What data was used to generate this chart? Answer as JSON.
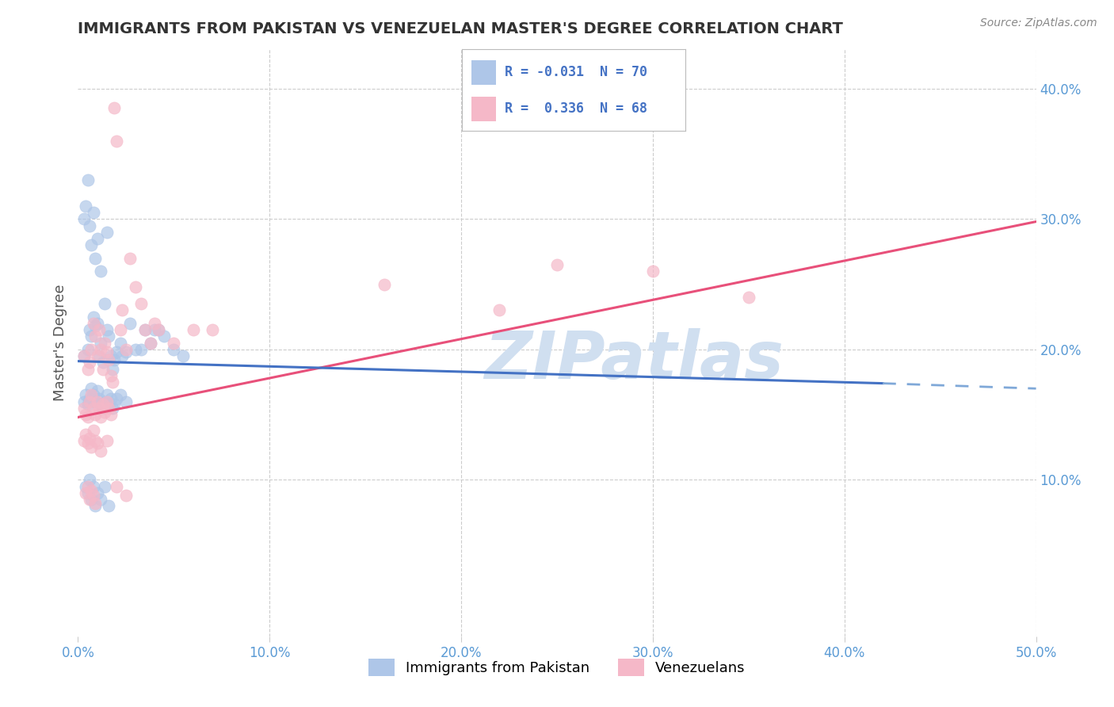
{
  "title": "IMMIGRANTS FROM PAKISTAN VS VENEZUELAN MASTER'S DEGREE CORRELATION CHART",
  "source_text": "Source: ZipAtlas.com",
  "ylabel": "Master's Degree",
  "xlim": [
    0.0,
    0.5
  ],
  "ylim": [
    -0.02,
    0.43
  ],
  "xticks": [
    0.0,
    0.1,
    0.2,
    0.3,
    0.4,
    0.5
  ],
  "xtick_labels": [
    "0.0%",
    "10.0%",
    "20.0%",
    "30.0%",
    "40.0%",
    "50.0%"
  ],
  "yticks": [
    0.1,
    0.2,
    0.3,
    0.4
  ],
  "ytick_labels": [
    "10.0%",
    "20.0%",
    "30.0%",
    "40.0%"
  ],
  "R_pakistan": -0.031,
  "N_pakistan": 70,
  "R_venezuela": 0.336,
  "N_venezuela": 68,
  "pakistan_color": "#aec6e8",
  "venezuela_color": "#f5b8c8",
  "pakistan_line_solid_color": "#4472c4",
  "pakistan_line_dash_color": "#7fa8d8",
  "venezuela_line_color": "#e8507a",
  "trend_pak_x0": 0.0,
  "trend_pak_y0": 0.191,
  "trend_pak_x1": 0.42,
  "trend_pak_y1": 0.174,
  "trend_pak_dash_x0": 0.42,
  "trend_pak_dash_y0": 0.174,
  "trend_pak_dash_x1": 0.5,
  "trend_pak_dash_y1": 0.17,
  "trend_ven_x0": 0.0,
  "trend_ven_y0": 0.148,
  "trend_ven_x1": 0.5,
  "trend_ven_y1": 0.298,
  "watermark": "ZIPatlas",
  "watermark_color": "#d0dff0",
  "background_color": "#ffffff",
  "grid_color": "#cccccc",
  "title_color": "#333333",
  "tick_label_color": "#5b9bd5",
  "ylabel_color": "#555555",
  "pakistan_scatter_x": [
    0.003,
    0.005,
    0.006,
    0.007,
    0.008,
    0.009,
    0.01,
    0.011,
    0.012,
    0.013,
    0.014,
    0.015,
    0.016,
    0.017,
    0.018,
    0.019,
    0.02,
    0.022,
    0.023,
    0.025,
    0.027,
    0.03,
    0.033,
    0.035,
    0.038,
    0.04,
    0.042,
    0.045,
    0.05,
    0.055,
    0.003,
    0.004,
    0.005,
    0.006,
    0.007,
    0.008,
    0.009,
    0.01,
    0.011,
    0.012,
    0.013,
    0.014,
    0.015,
    0.016,
    0.017,
    0.018,
    0.019,
    0.02,
    0.022,
    0.025,
    0.003,
    0.004,
    0.005,
    0.006,
    0.007,
    0.008,
    0.009,
    0.01,
    0.012,
    0.015,
    0.004,
    0.005,
    0.006,
    0.007,
    0.008,
    0.009,
    0.01,
    0.012,
    0.014,
    0.016
  ],
  "pakistan_scatter_y": [
    0.195,
    0.2,
    0.215,
    0.21,
    0.225,
    0.218,
    0.22,
    0.195,
    0.205,
    0.19,
    0.235,
    0.215,
    0.21,
    0.195,
    0.185,
    0.192,
    0.198,
    0.205,
    0.195,
    0.198,
    0.22,
    0.2,
    0.2,
    0.215,
    0.205,
    0.215,
    0.215,
    0.21,
    0.2,
    0.195,
    0.16,
    0.165,
    0.158,
    0.162,
    0.17,
    0.165,
    0.16,
    0.168,
    0.162,
    0.158,
    0.155,
    0.16,
    0.165,
    0.158,
    0.162,
    0.155,
    0.158,
    0.162,
    0.165,
    0.16,
    0.3,
    0.31,
    0.33,
    0.295,
    0.28,
    0.305,
    0.27,
    0.285,
    0.26,
    0.29,
    0.095,
    0.09,
    0.1,
    0.085,
    0.095,
    0.08,
    0.09,
    0.085,
    0.095,
    0.08
  ],
  "venezuela_scatter_x": [
    0.003,
    0.005,
    0.006,
    0.007,
    0.008,
    0.009,
    0.01,
    0.011,
    0.012,
    0.013,
    0.014,
    0.015,
    0.016,
    0.017,
    0.018,
    0.019,
    0.02,
    0.022,
    0.023,
    0.025,
    0.027,
    0.03,
    0.033,
    0.035,
    0.038,
    0.04,
    0.042,
    0.05,
    0.06,
    0.07,
    0.003,
    0.004,
    0.005,
    0.006,
    0.007,
    0.008,
    0.009,
    0.01,
    0.011,
    0.012,
    0.013,
    0.014,
    0.015,
    0.016,
    0.017,
    0.16,
    0.22,
    0.25,
    0.3,
    0.35,
    0.003,
    0.004,
    0.005,
    0.006,
    0.007,
    0.008,
    0.009,
    0.01,
    0.012,
    0.015,
    0.004,
    0.005,
    0.006,
    0.007,
    0.008,
    0.009,
    0.02,
    0.025
  ],
  "venezuela_scatter_y": [
    0.195,
    0.185,
    0.19,
    0.2,
    0.22,
    0.21,
    0.195,
    0.215,
    0.2,
    0.185,
    0.205,
    0.198,
    0.192,
    0.18,
    0.175,
    0.385,
    0.36,
    0.215,
    0.23,
    0.2,
    0.27,
    0.248,
    0.235,
    0.215,
    0.205,
    0.22,
    0.215,
    0.205,
    0.215,
    0.215,
    0.155,
    0.15,
    0.148,
    0.16,
    0.165,
    0.155,
    0.15,
    0.16,
    0.155,
    0.148,
    0.158,
    0.152,
    0.16,
    0.155,
    0.15,
    0.25,
    0.23,
    0.265,
    0.26,
    0.24,
    0.13,
    0.135,
    0.128,
    0.132,
    0.125,
    0.138,
    0.13,
    0.128,
    0.122,
    0.13,
    0.09,
    0.095,
    0.085,
    0.092,
    0.088,
    0.082,
    0.095,
    0.088
  ]
}
